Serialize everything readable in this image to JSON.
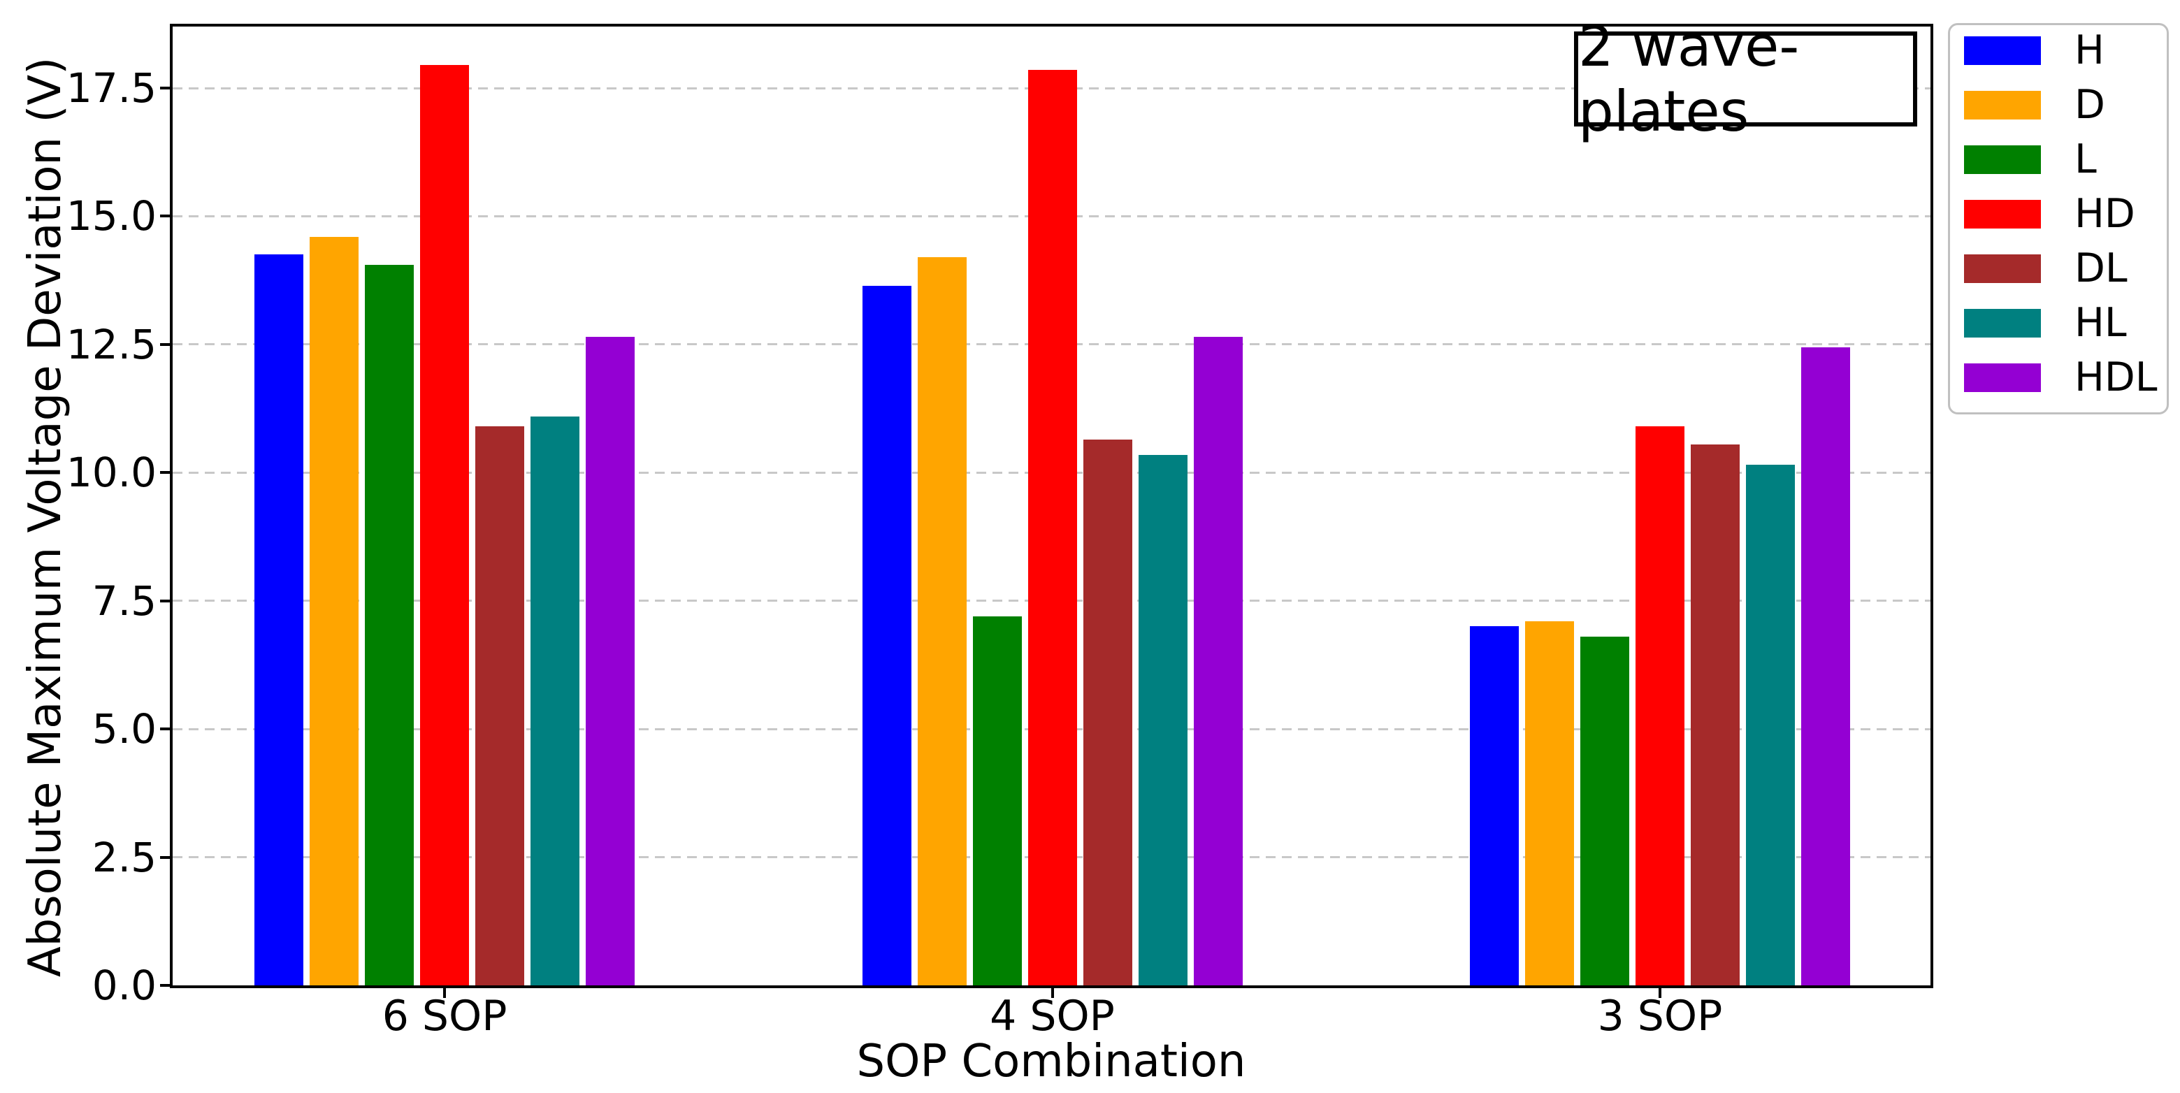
{
  "chart_data": {
    "type": "bar",
    "annotation": "2 wave-plates",
    "xlabel": "SOP Combination",
    "ylabel": "Absolute Maximum Voltage Deviation (V)",
    "categories": [
      "6 SOP",
      "4 SOP",
      "3 SOP"
    ],
    "series": [
      {
        "name": "H",
        "color": "#0000FF",
        "values": [
          14.25,
          13.65,
          7.0
        ]
      },
      {
        "name": "D",
        "color": "#FFA500",
        "values": [
          14.6,
          14.2,
          7.1
        ]
      },
      {
        "name": "L",
        "color": "#008000",
        "values": [
          14.05,
          7.2,
          6.8
        ]
      },
      {
        "name": "HD",
        "color": "#FF0000",
        "values": [
          17.95,
          17.85,
          10.9
        ]
      },
      {
        "name": "DL",
        "color": "#A52A2A",
        "values": [
          10.9,
          10.65,
          10.55
        ]
      },
      {
        "name": "HL",
        "color": "#008080",
        "values": [
          11.1,
          10.35,
          10.15
        ]
      },
      {
        "name": "HDL",
        "color": "#9400D3",
        "values": [
          12.65,
          12.65,
          12.45
        ]
      }
    ],
    "ylim": [
      0,
      18.7
    ],
    "yticks": [
      0.0,
      2.5,
      5.0,
      7.5,
      10.0,
      12.5,
      15.0,
      17.5
    ],
    "ytick_labels": [
      "0.0",
      "2.5",
      "5.0",
      "7.5",
      "10.0",
      "12.5",
      "15.0",
      "17.5"
    ],
    "grid": "horizontal-dashed",
    "grid_color": "#c8c8c8",
    "legend_position": "outside-right",
    "legend_entries": [
      "H",
      "D",
      "L",
      "HD",
      "DL",
      "HL",
      "HDL"
    ]
  }
}
